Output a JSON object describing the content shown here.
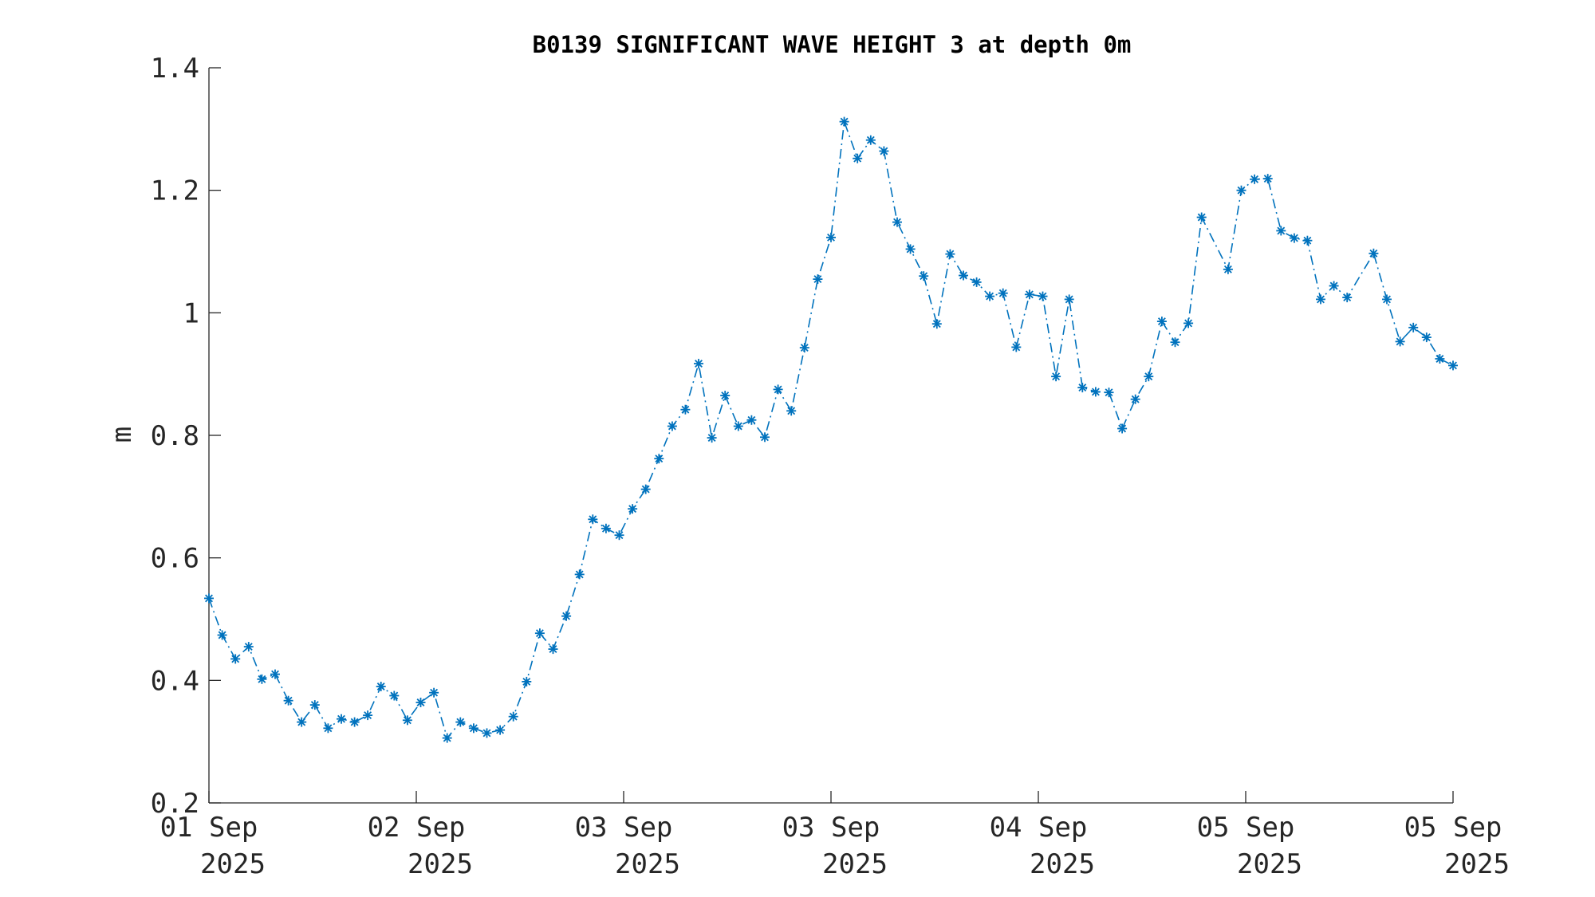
{
  "chart_data": {
    "type": "line",
    "title": "B0139 SIGNIFICANT WAVE HEIGHT 3 at depth 0m",
    "xlabel": "",
    "ylabel": "m",
    "ylim": [
      0.2,
      1.4
    ],
    "yticks": [
      "0.2",
      "0.4",
      "0.6",
      "0.8",
      "1",
      "1.2",
      "1.4"
    ],
    "xticks": [
      {
        "line1": "01 Sep",
        "line2": "2025"
      },
      {
        "line1": "02 Sep",
        "line2": "2025"
      },
      {
        "line1": "03 Sep",
        "line2": "2025"
      },
      {
        "line1": "03 Sep",
        "line2": "2025"
      },
      {
        "line1": "04 Sep",
        "line2": "2025"
      },
      {
        "line1": "05 Sep",
        "line2": "2025"
      },
      {
        "line1": "05 Sep",
        "line2": "2025"
      }
    ],
    "grid": false,
    "line_style": "dash-dot",
    "marker": "asterisk",
    "color": "#0072BD",
    "series": [
      {
        "values": [
          0.534,
          0.474,
          0.435,
          0.455,
          0.402,
          0.41,
          0.367,
          0.332,
          0.36,
          0.322,
          0.337,
          0.332,
          0.343,
          0.39,
          0.375,
          0.335,
          0.364,
          0.38,
          0.306,
          0.332,
          0.322,
          0.314,
          0.319,
          0.341,
          0.398,
          0.477,
          0.451,
          0.505,
          0.573,
          0.663,
          0.648,
          0.637,
          0.68,
          0.712,
          0.762,
          0.815,
          0.842,
          0.917,
          0.796,
          0.865,
          0.815,
          0.825,
          0.797,
          0.875,
          0.84,
          0.943,
          1.055,
          1.123,
          1.312,
          1.252,
          1.282,
          1.264,
          1.148,
          1.104,
          1.06,
          0.982,
          1.096,
          1.061,
          1.05,
          1.027,
          1.032,
          0.944,
          1.03,
          1.027,
          0.896,
          1.022,
          0.878,
          0.871,
          0.87,
          0.811,
          0.859,
          0.896,
          0.986,
          0.952,
          0.983,
          1.156,
          null,
          1.071,
          1.2,
          1.218,
          1.219,
          1.134,
          1.122,
          1.118,
          1.022,
          1.044,
          1.025,
          null,
          1.097,
          1.022,
          0.953,
          0.976,
          0.96,
          0.925,
          0.914
        ]
      }
    ]
  }
}
